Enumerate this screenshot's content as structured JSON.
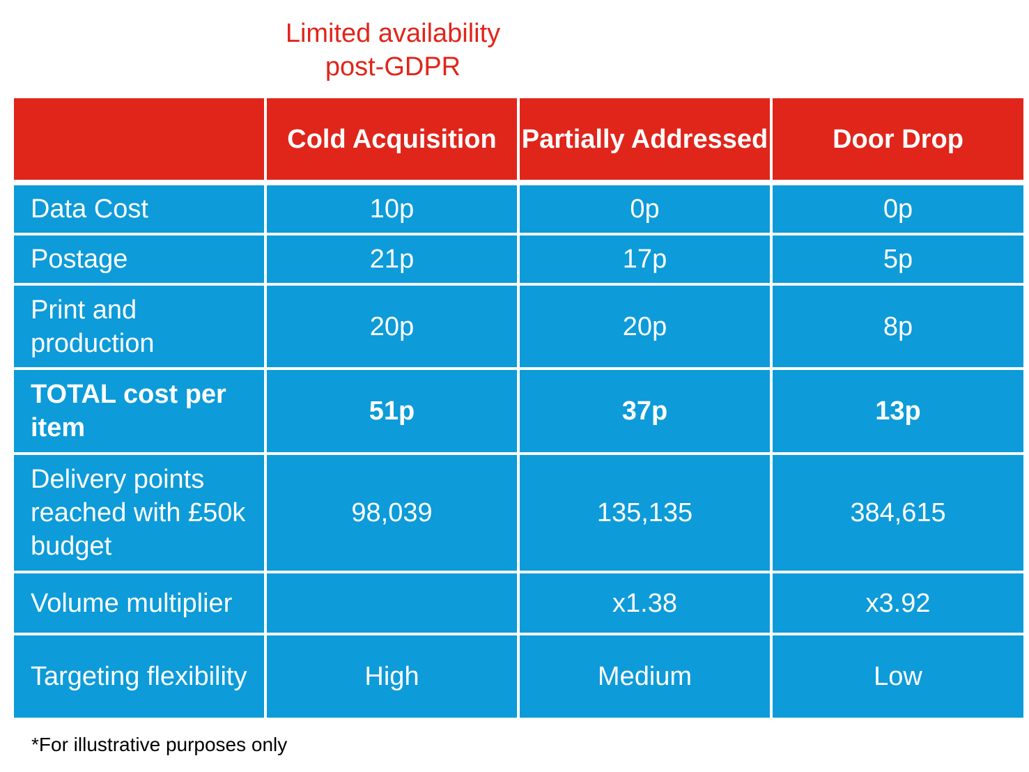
{
  "note": "Limited availability post-GDPR",
  "columns": [
    "",
    "Cold Acquisition",
    "Partially Addressed",
    "Door Drop"
  ],
  "rows": [
    {
      "label": "Data Cost",
      "values": [
        "10p",
        "0p",
        "0p"
      ]
    },
    {
      "label": "Postage",
      "values": [
        "21p",
        "17p",
        "5p"
      ]
    },
    {
      "label": "Print and production",
      "values": [
        "20p",
        "20p",
        "8p"
      ]
    },
    {
      "label": "TOTAL cost per item",
      "values": [
        "51p",
        "37p",
        "13p"
      ]
    },
    {
      "label": "Delivery points reached with £50k budget",
      "values": [
        "98,039",
        "135,135",
        "384,615"
      ]
    },
    {
      "label": "Volume multiplier",
      "values": [
        "",
        "x1.38",
        "x3.92"
      ]
    },
    {
      "label": "Targeting flexibility",
      "values": [
        "High",
        "Medium",
        "Low"
      ]
    }
  ],
  "footer": "*For illustrative purposes only",
  "colors": {
    "header": "#e0251b",
    "body": "#0d9bd9",
    "note": "#e0251b"
  }
}
